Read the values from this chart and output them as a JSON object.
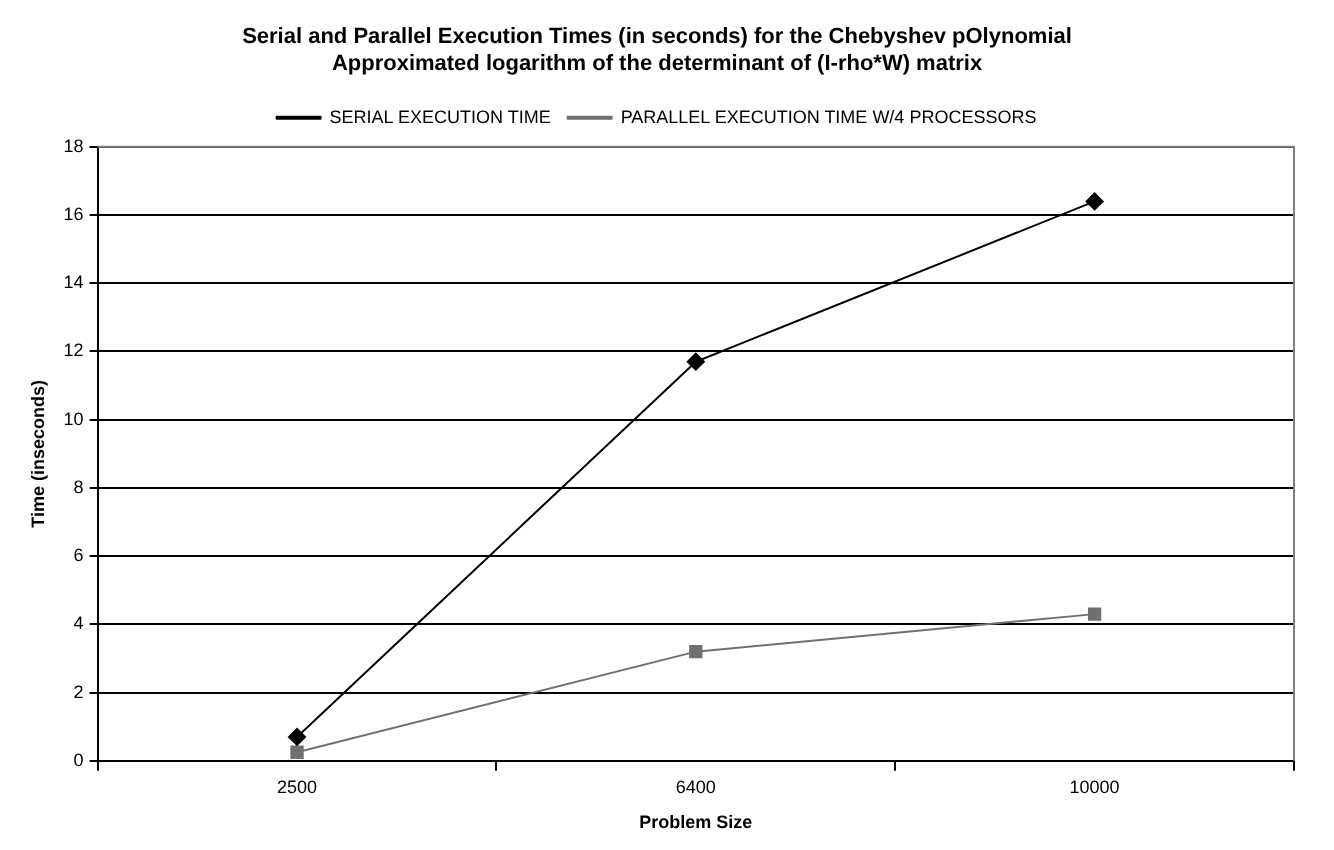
{
  "chart_data": {
    "type": "line",
    "title": "Serial and Parallel Execution Times (in seconds) for the Chebyshev pOlynomial\nApproximated logarithm of the determinant of (I-rho*W) matrix",
    "xlabel": "Problem Size",
    "ylabel": "Time (inseconds)",
    "categories": [
      "2500",
      "6400",
      "10000"
    ],
    "series": [
      {
        "name": "SERIAL EXECUTION TIME",
        "color": "#000000",
        "marker": "diamond",
        "values": [
          0.7,
          11.7,
          16.4
        ]
      },
      {
        "name": "PARALLEL EXECUTION TIME W/4 PROCESSORS",
        "color": "#707070",
        "marker": "square",
        "values": [
          0.25,
          3.2,
          4.3
        ]
      }
    ],
    "ylim": [
      0,
      18
    ],
    "yticks": [
      0,
      2,
      4,
      6,
      8,
      10,
      12,
      14,
      16,
      18
    ],
    "grid": "y",
    "legend": "top"
  }
}
